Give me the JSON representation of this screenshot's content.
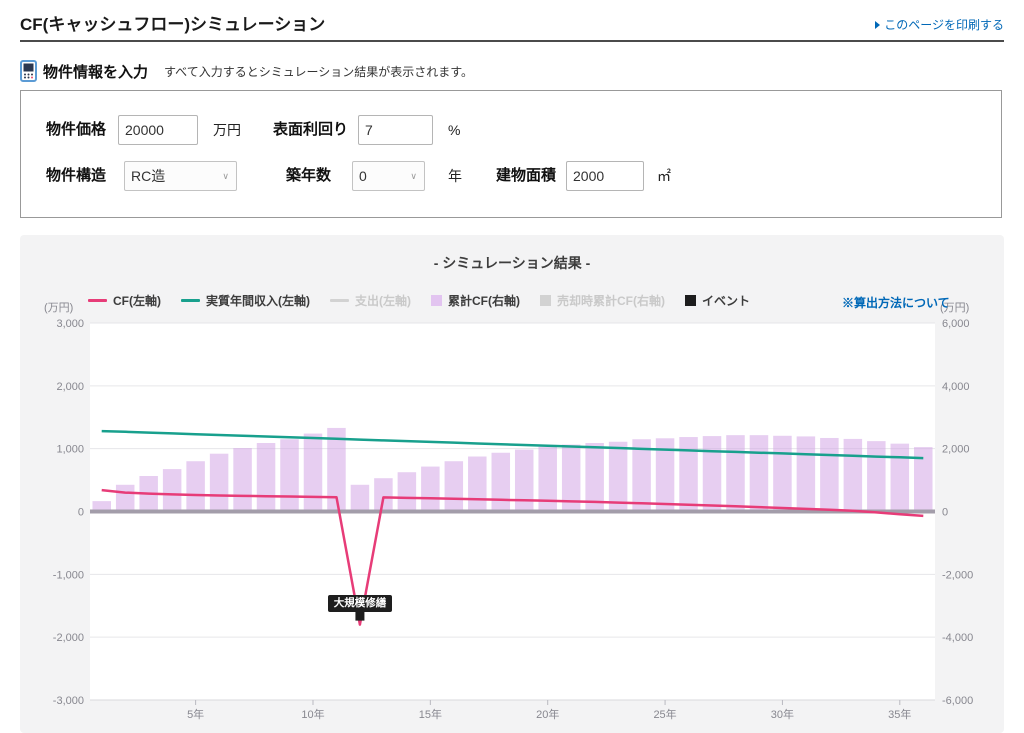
{
  "page": {
    "title": "CF(キャッシュフロー)シミュレーション",
    "print_link": "このページを印刷する"
  },
  "form_section": {
    "heading": "物件情報を入力",
    "note": "すべて入力するとシミュレーション結果が表示されます。",
    "fields": {
      "price": {
        "label": "物件価格",
        "value": "20000",
        "unit": "万円"
      },
      "yield": {
        "label": "表面利回り",
        "value": "7",
        "unit": "%"
      },
      "structure": {
        "label": "物件構造",
        "value": "RC造"
      },
      "age": {
        "label": "築年数",
        "value": "0",
        "unit": "年"
      },
      "area": {
        "label": "建物面積",
        "value": "2000",
        "unit": "㎡"
      }
    }
  },
  "chart_section": {
    "title": "- シミュレーション結果 -",
    "method_link": "※算出方法について",
    "left_unit": "(万円)",
    "right_unit": "(万円)"
  },
  "chart_data": {
    "type": "mixed-bar-line",
    "x_years": 36,
    "x_tick_years": [
      5,
      10,
      15,
      20,
      25,
      30,
      35
    ],
    "x_tick_suffix": "年",
    "grid": true,
    "left_axis": {
      "unit": "(万円)",
      "max": 3000,
      "min": -3000,
      "tick_values": [
        3000,
        2000,
        1000,
        0,
        -1000,
        -2000,
        -3000
      ],
      "tick_labels": [
        "3,000",
        "2,000",
        "1,000",
        "0",
        "-1,000",
        "-2,000",
        "-3,000"
      ]
    },
    "right_axis": {
      "unit": "(万円)",
      "max": 6000,
      "min": -6000,
      "tick_values": [
        6000,
        4000,
        2000,
        0,
        -2000,
        -4000,
        -6000
      ],
      "tick_labels": [
        "6,000",
        "4,000",
        "2,000",
        "0",
        "-2,000",
        "-4,000",
        "-6,000"
      ]
    },
    "series": [
      {
        "name": "CF(左軸)",
        "type": "line",
        "axis": "left",
        "color": "#e73c78",
        "enabled": true,
        "values": [
          340,
          300,
          285,
          272,
          262,
          254,
          248,
          243,
          238,
          233,
          228,
          -1800,
          224,
          217,
          210,
          203,
          195,
          187,
          179,
          170,
          161,
          152,
          142,
          131,
          120,
          108,
          96,
          83,
          70,
          56,
          42,
          27,
          12,
          -15,
          -43,
          -70
        ]
      },
      {
        "name": "実質年間収入(左軸)",
        "type": "line",
        "axis": "left",
        "color": "#18a08d",
        "enabled": true,
        "values": [
          1280,
          1268,
          1255,
          1243,
          1231,
          1218,
          1206,
          1194,
          1182,
          1169,
          1157,
          1145,
          1132,
          1120,
          1108,
          1096,
          1083,
          1071,
          1059,
          1046,
          1034,
          1022,
          1010,
          997,
          985,
          973,
          960,
          948,
          936,
          924,
          911,
          899,
          887,
          874,
          862,
          850
        ]
      },
      {
        "name": "支出(左軸)",
        "type": "line",
        "axis": "left",
        "color": "#c9c9c9",
        "enabled": false,
        "values": null
      },
      {
        "name": "累計CF(右軸)",
        "type": "bar",
        "axis": "right",
        "color": "#cf9de4",
        "enabled": true,
        "values": [
          330,
          850,
          1130,
          1350,
          1600,
          1840,
          2020,
          2180,
          2300,
          2480,
          2660,
          850,
          1060,
          1250,
          1430,
          1600,
          1750,
          1870,
          1970,
          2060,
          2130,
          2180,
          2220,
          2300,
          2330,
          2370,
          2400,
          2430,
          2430,
          2410,
          2390,
          2340,
          2310,
          2240,
          2160,
          2050
        ]
      },
      {
        "name": "売却時累計CF(右軸)",
        "type": "bar",
        "axis": "right",
        "color": "#c9c9c9",
        "enabled": false,
        "values": null
      },
      {
        "name": "イベント",
        "type": "event",
        "axis": "left",
        "color": "#1d1d1d",
        "enabled": true,
        "values": null
      }
    ],
    "events": [
      {
        "year": 12,
        "label": "大規模修繕",
        "value": -1800
      }
    ]
  }
}
